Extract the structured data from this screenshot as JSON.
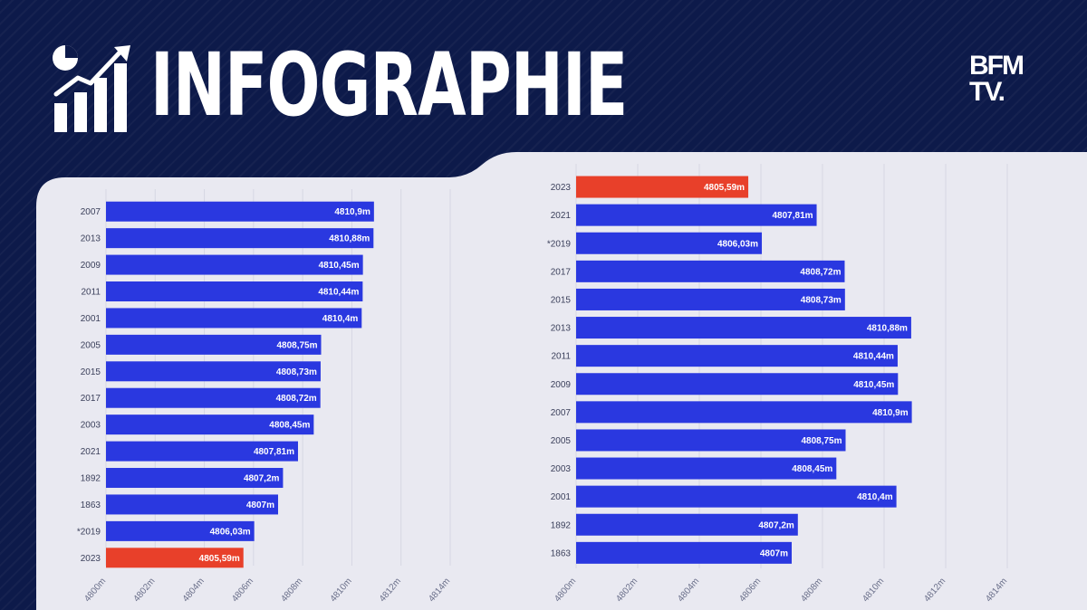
{
  "header": {
    "title": "INFOGRAPHIE",
    "icon": "chart-growth-icon"
  },
  "logo": {
    "line1": "BFM",
    "line2": "TV."
  },
  "colors": {
    "background": "#0d1a4a",
    "panel": "#e9e9f1",
    "bar_default": "#2a38e0",
    "bar_highlight": "#e8402a"
  },
  "chart_data": [
    {
      "type": "bar",
      "orientation": "horizontal",
      "categories": [
        "2007",
        "2013",
        "2009",
        "2011",
        "2001",
        "2005",
        "2015",
        "2017",
        "2003",
        "2021",
        "1892",
        "1863",
        "*2019",
        "2023"
      ],
      "values": [
        4810.9,
        4810.88,
        4810.45,
        4810.44,
        4810.4,
        4808.75,
        4808.73,
        4808.72,
        4808.45,
        4807.81,
        4807.2,
        4807,
        4806.03,
        4805.59
      ],
      "value_labels": [
        "4810,9m",
        "4810,88m",
        "4810,45m",
        "4810,44m",
        "4810,4m",
        "4808,75m",
        "4808,73m",
        "4808,72m",
        "4808,45m",
        "4807,81m",
        "4807,2m",
        "4807m",
        "4806,03m",
        "4805,59m"
      ],
      "highlight": "2023",
      "xlim": [
        4800,
        4814
      ],
      "x_ticks": [
        "4800m",
        "4802m",
        "4804m",
        "4806m",
        "4808m",
        "4810m",
        "4812m",
        "4814m"
      ],
      "title": "",
      "xlabel": "",
      "ylabel": ""
    },
    {
      "type": "bar",
      "orientation": "horizontal",
      "categories": [
        "2023",
        "2021",
        "*2019",
        "2017",
        "2015",
        "2013",
        "2011",
        "2009",
        "2007",
        "2005",
        "2003",
        "2001",
        "1892",
        "1863"
      ],
      "values": [
        4805.59,
        4807.81,
        4806.03,
        4808.72,
        4808.73,
        4810.88,
        4810.44,
        4810.45,
        4810.9,
        4808.75,
        4808.45,
        4810.4,
        4807.2,
        4807
      ],
      "value_labels": [
        "4805,59m",
        "4807,81m",
        "4806,03m",
        "4808,72m",
        "4808,73m",
        "4810,88m",
        "4810,44m",
        "4810,45m",
        "4810,9m",
        "4808,75m",
        "4808,45m",
        "4810,4m",
        "4807,2m",
        "4807m"
      ],
      "highlight": "2023",
      "xlim": [
        4800,
        4814
      ],
      "x_ticks": [
        "4800m",
        "4802m",
        "4804m",
        "4806m",
        "4808m",
        "4810m",
        "4812m",
        "4814m"
      ],
      "title": "",
      "xlabel": "",
      "ylabel": ""
    }
  ]
}
